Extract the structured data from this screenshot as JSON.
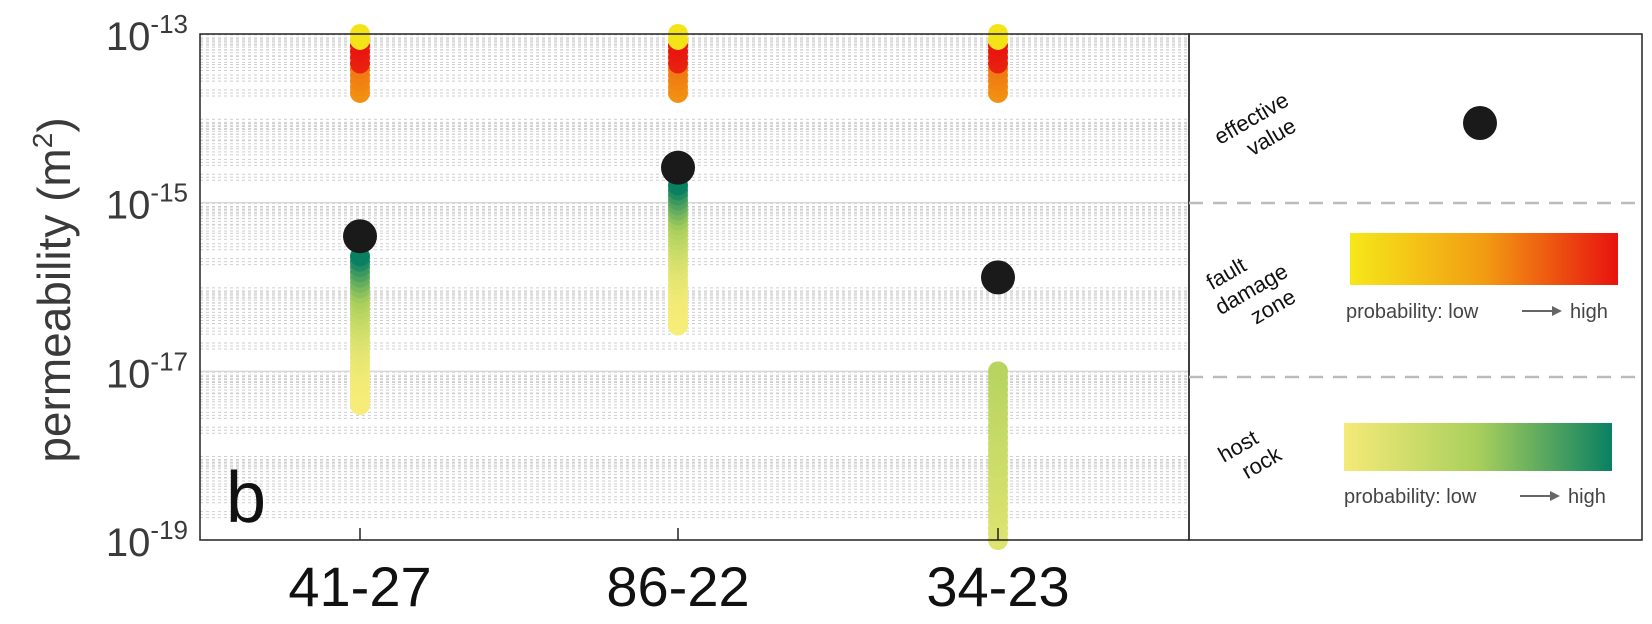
{
  "chart_data": {
    "type": "scatter",
    "panel_label": "b",
    "ylabel": "permeability (m2)",
    "ylabel_base": "permeability (m",
    "ylabel_sup": "2",
    "ylabel_close": ")",
    "yscale": "log",
    "ylim": [
      1e-19,
      1e-13
    ],
    "y_tick_labels": [
      {
        "exp": -13,
        "base": "10",
        "sup": "-13"
      },
      {
        "exp": -15,
        "base": "10",
        "sup": "-15"
      },
      {
        "exp": -17,
        "base": "10",
        "sup": "-17"
      },
      {
        "exp": -19,
        "base": "10",
        "sup": "-19"
      }
    ],
    "grid": "minor dashed, major solid at 1e-15 and 1e-17",
    "categories": [
      "41-27",
      "86-22",
      "34-23"
    ],
    "series": [
      {
        "name": "effective value",
        "color": "#1a1a1a",
        "values": [
          4e-16,
          2.6e-15,
          1.3e-16
        ]
      },
      {
        "name": "fault damage zone",
        "color_scale": [
          "#f5e31a",
          "#f29a12",
          "#e8120f"
        ],
        "ranges": [
          [
            2e-14,
            1e-13
          ],
          [
            2e-14,
            1e-13
          ],
          [
            2e-14,
            1e-13
          ]
        ]
      },
      {
        "name": "host rock",
        "color_scale": [
          "#f6ec78",
          "#a9cf5c",
          "#0a8062"
        ],
        "ranges": [
          [
            4e-18,
            2.3e-16
          ],
          [
            3.5e-17,
            1.6e-15
          ],
          [
            1e-19,
            1e-17
          ]
        ]
      }
    ],
    "legend": {
      "placement": "right panel",
      "effective_label_1": "effective",
      "effective_label_2": "value",
      "fault_label_1": "fault",
      "fault_label_2": "damage",
      "fault_label_3": "zone",
      "host_label_1": "host",
      "host_label_2": "rock",
      "probability_low": "probability: low",
      "probability_high": "high",
      "fault_gradient": [
        "#f5e81a",
        "#f29c12",
        "#e8120f"
      ],
      "host_gradient": [
        "#f5ea78",
        "#a9cf5c",
        "#0a8062"
      ]
    }
  }
}
